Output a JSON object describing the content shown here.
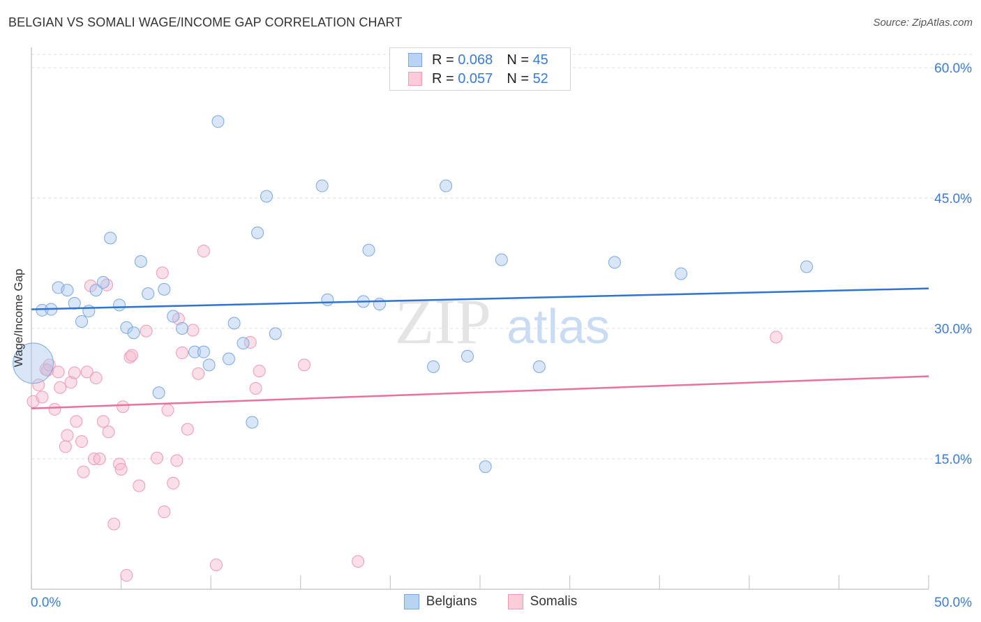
{
  "title": "BELGIAN VS SOMALI WAGE/INCOME GAP CORRELATION CHART",
  "source": "Source: ZipAtlas.com",
  "watermark": {
    "zip": "ZIP",
    "atlas": "atlas"
  },
  "legend": {
    "belgians": {
      "r_label": "R =",
      "r_value": "0.068",
      "n_label": "N =",
      "n_value": "45"
    },
    "somalis": {
      "r_label": "R =",
      "r_value": "0.057",
      "n_label": "N =",
      "n_value": "52"
    }
  },
  "bottom_legend": {
    "belgians": "Belgians",
    "somalis": "Somalis"
  },
  "colors": {
    "belgian_fill": "#a9c8ef",
    "belgian_stroke": "#7aa8e0",
    "belgian_line": "#2f74d0",
    "somali_fill": "#f7b9cb",
    "somali_stroke": "#ee9ab4",
    "somali_line": "#e8729a",
    "tick_text": "#3a7bd5",
    "grid": "#dddddd",
    "axis": "#c8c8c8"
  },
  "chart_data": {
    "type": "scatter",
    "title": "BELGIAN VS SOMALI WAGE/INCOME GAP CORRELATION CHART",
    "xlabel": "",
    "ylabel": "Wage/Income Gap",
    "xlim": [
      0,
      50
    ],
    "ylim": [
      0,
      62
    ],
    "x_tick_labels": [
      "0.0%",
      "50.0%"
    ],
    "y_ticks": [
      15,
      30,
      45,
      60
    ],
    "y_tick_labels": [
      "15.0%",
      "30.0%",
      "45.0%",
      "60.0%"
    ],
    "grid": true,
    "series": [
      {
        "name": "Belgians",
        "r": 0.068,
        "n": 45,
        "trend": {
          "x0": 0,
          "y0": 32.2,
          "x1": 50,
          "y1": 34.6
        },
        "points": [
          [
            0.1,
            26.0,
            3.4
          ],
          [
            0.6,
            32.1,
            1
          ],
          [
            1.1,
            32.2,
            1
          ],
          [
            1.5,
            34.7,
            1
          ],
          [
            2.0,
            34.4,
            1
          ],
          [
            2.4,
            32.9,
            1
          ],
          [
            2.8,
            30.8,
            1
          ],
          [
            3.2,
            32.0,
            1
          ],
          [
            3.6,
            34.4,
            1
          ],
          [
            4.0,
            35.3,
            1
          ],
          [
            4.4,
            40.4,
            1
          ],
          [
            4.9,
            32.7,
            1
          ],
          [
            5.3,
            30.1,
            1
          ],
          [
            5.7,
            29.5,
            1
          ],
          [
            6.1,
            37.7,
            1
          ],
          [
            6.5,
            34.0,
            1
          ],
          [
            7.1,
            22.6,
            1
          ],
          [
            7.4,
            34.5,
            1
          ],
          [
            7.9,
            31.4,
            1
          ],
          [
            8.4,
            30.0,
            1
          ],
          [
            9.1,
            27.3,
            1
          ],
          [
            9.6,
            27.3,
            1
          ],
          [
            9.9,
            25.8,
            1
          ],
          [
            10.4,
            53.8,
            1
          ],
          [
            11.0,
            26.5,
            1
          ],
          [
            11.3,
            30.6,
            1
          ],
          [
            11.8,
            28.3,
            1
          ],
          [
            12.3,
            19.2,
            1
          ],
          [
            12.6,
            41.0,
            1
          ],
          [
            13.1,
            45.2,
            1
          ],
          [
            13.6,
            29.4,
            1
          ],
          [
            16.2,
            46.4,
            1
          ],
          [
            16.5,
            33.3,
            1
          ],
          [
            18.5,
            33.1,
            1
          ],
          [
            18.8,
            39.0,
            1
          ],
          [
            19.4,
            32.8,
            1
          ],
          [
            22.4,
            25.6,
            1
          ],
          [
            23.1,
            46.4,
            1
          ],
          [
            24.3,
            26.8,
            1
          ],
          [
            25.3,
            14.1,
            1
          ],
          [
            26.2,
            37.9,
            1
          ],
          [
            28.3,
            25.6,
            1
          ],
          [
            32.5,
            37.6,
            1
          ],
          [
            36.2,
            36.3,
            1
          ],
          [
            43.2,
            37.1,
            1
          ]
        ]
      },
      {
        "name": "Somalis",
        "r": 0.057,
        "n": 52,
        "trend": {
          "x0": 0,
          "y0": 20.8,
          "x1": 50,
          "y1": 24.5
        },
        "points": [
          [
            0.1,
            21.6
          ],
          [
            0.4,
            23.5
          ],
          [
            0.6,
            22.1
          ],
          [
            0.8,
            25.3
          ],
          [
            0.9,
            25.2
          ],
          [
            1.0,
            25.8
          ],
          [
            1.3,
            20.7
          ],
          [
            1.5,
            25.0
          ],
          [
            1.6,
            23.2
          ],
          [
            1.9,
            16.4
          ],
          [
            2.0,
            17.7
          ],
          [
            2.2,
            23.8
          ],
          [
            2.4,
            24.9
          ],
          [
            2.5,
            19.3
          ],
          [
            2.8,
            17.0
          ],
          [
            2.9,
            13.5
          ],
          [
            3.1,
            25.0
          ],
          [
            3.3,
            34.9
          ],
          [
            3.5,
            15.0
          ],
          [
            3.6,
            24.3
          ],
          [
            3.8,
            15.0
          ],
          [
            4.0,
            19.3
          ],
          [
            4.2,
            35.0
          ],
          [
            4.3,
            18.1
          ],
          [
            4.6,
            7.5
          ],
          [
            4.9,
            14.4
          ],
          [
            5.0,
            13.8
          ],
          [
            5.1,
            21.0
          ],
          [
            5.3,
            1.6
          ],
          [
            5.5,
            26.7
          ],
          [
            5.6,
            26.9
          ],
          [
            6.0,
            11.9
          ],
          [
            6.4,
            29.7
          ],
          [
            7.0,
            15.1
          ],
          [
            7.3,
            36.4
          ],
          [
            7.4,
            8.9
          ],
          [
            7.6,
            20.6
          ],
          [
            7.9,
            12.2
          ],
          [
            8.1,
            14.8
          ],
          [
            8.2,
            31.1
          ],
          [
            8.4,
            27.2
          ],
          [
            8.7,
            18.4
          ],
          [
            9.0,
            29.8
          ],
          [
            9.3,
            24.8
          ],
          [
            9.6,
            38.9
          ],
          [
            10.3,
            2.8
          ],
          [
            12.2,
            28.4
          ],
          [
            12.5,
            23.1
          ],
          [
            12.7,
            25.1
          ],
          [
            15.2,
            25.8
          ],
          [
            18.2,
            3.2
          ],
          [
            41.5,
            29.0
          ]
        ]
      }
    ]
  }
}
